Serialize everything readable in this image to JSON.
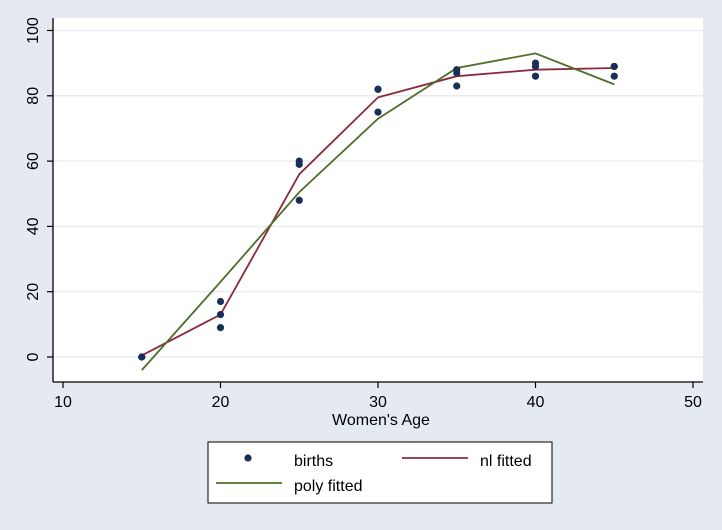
{
  "chart_data": {
    "type": "scatter",
    "title": "",
    "xlabel": "Women's Age",
    "ylabel": "",
    "xlim": [
      10,
      50
    ],
    "ylim": [
      -7,
      107
    ],
    "xticks": [
      10,
      20,
      30,
      40,
      50
    ],
    "yticks": [
      0,
      20,
      40,
      60,
      80,
      100
    ],
    "grid": "horizontal",
    "legend_position": "bottom",
    "series": [
      {
        "name": "births",
        "kind": "scatter",
        "color": "#1a2e5a",
        "points": [
          [
            15,
            0
          ],
          [
            15,
            0
          ],
          [
            20,
            17
          ],
          [
            20,
            13
          ],
          [
            20,
            9
          ],
          [
            25,
            60
          ],
          [
            25,
            59
          ],
          [
            25,
            48
          ],
          [
            30,
            82
          ],
          [
            30,
            82
          ],
          [
            30,
            75
          ],
          [
            35,
            88
          ],
          [
            35,
            87
          ],
          [
            35,
            83
          ],
          [
            40,
            90
          ],
          [
            40,
            89
          ],
          [
            40,
            86
          ],
          [
            45,
            89
          ],
          [
            45,
            89
          ],
          [
            45,
            86
          ]
        ]
      },
      {
        "name": "nl fitted",
        "kind": "line",
        "color": "#8b2a3a",
        "points": [
          [
            15,
            0.5
          ],
          [
            20,
            13
          ],
          [
            25,
            56
          ],
          [
            30,
            79.5
          ],
          [
            35,
            86
          ],
          [
            40,
            88
          ],
          [
            45,
            88.5
          ]
        ]
      },
      {
        "name": "poly fitted",
        "kind": "line",
        "color": "#4e6e2a",
        "points": [
          [
            15,
            -4
          ],
          [
            20,
            23
          ],
          [
            25,
            50.5
          ],
          [
            30,
            73
          ],
          [
            35,
            88.5
          ],
          [
            40,
            93
          ],
          [
            45,
            83.5
          ]
        ]
      }
    ],
    "legend": {
      "items": [
        {
          "label": "births",
          "series": 0
        },
        {
          "label": "nl fitted",
          "series": 1
        },
        {
          "label": "poly fitted",
          "series": 2
        }
      ]
    }
  }
}
